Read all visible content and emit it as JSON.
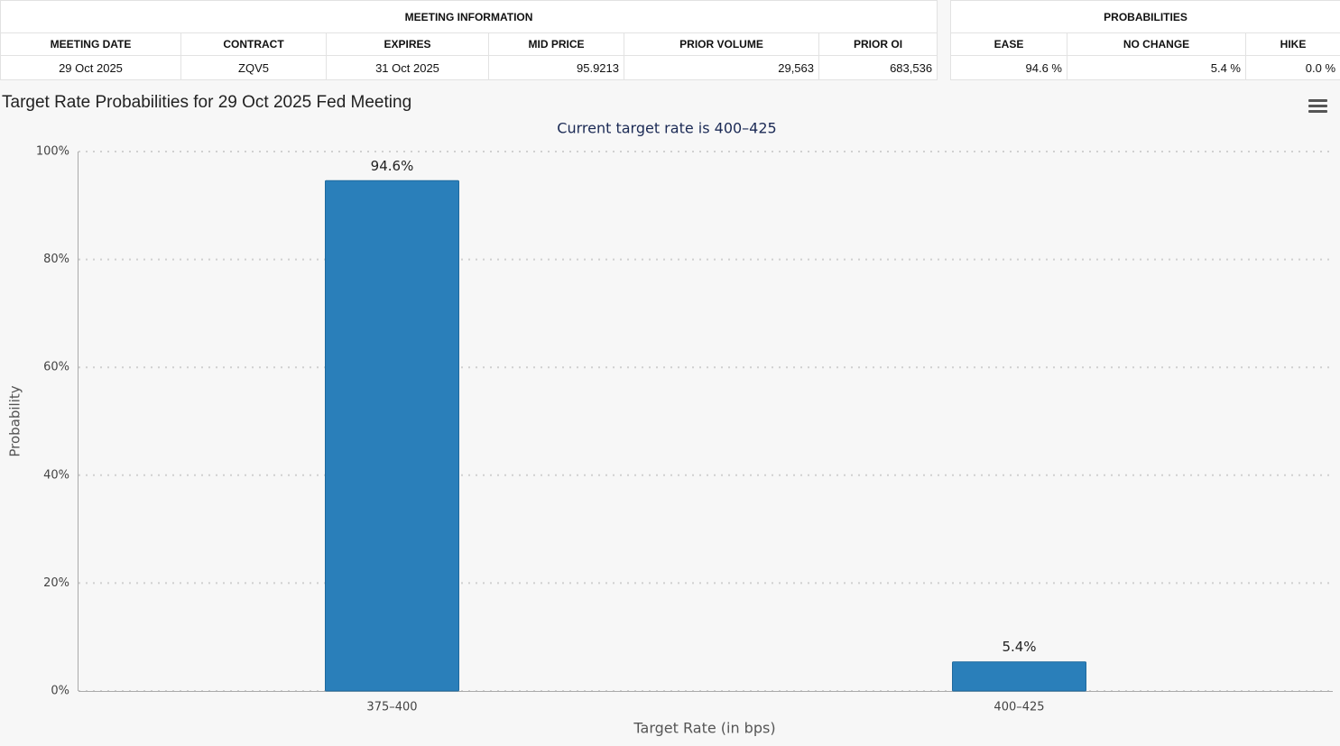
{
  "meeting_information": {
    "title": "MEETING INFORMATION",
    "columns": [
      "MEETING DATE",
      "CONTRACT",
      "EXPIRES",
      "MID PRICE",
      "PRIOR VOLUME",
      "PRIOR OI"
    ],
    "rows": [
      [
        "29 Oct 2025",
        "ZQV5",
        "31 Oct 2025",
        "95.9213",
        "29,563",
        "683,536"
      ]
    ]
  },
  "probabilities": {
    "title": "PROBABILITIES",
    "columns": [
      "EASE",
      "NO CHANGE",
      "HIKE"
    ],
    "rows": [
      [
        "94.6 %",
        "5.4 %",
        "0.0 %"
      ]
    ]
  },
  "chart_data": {
    "type": "bar",
    "title": "Target Rate Probabilities for 29 Oct 2025 Fed Meeting",
    "subtitle": "Current target rate is 400–425",
    "x_label": "Target Rate (in bps)",
    "y_label": "Probability",
    "categories": [
      "375–400",
      "400–425"
    ],
    "values": [
      94.6,
      5.4
    ],
    "value_labels": [
      "94.6%",
      "5.4%"
    ],
    "color": "#2a7fba",
    "ylim": [
      0,
      100
    ],
    "yticks": [
      {
        "value": 0,
        "label": "0%"
      },
      {
        "value": 20,
        "label": "20%"
      },
      {
        "value": 40,
        "label": "40%"
      },
      {
        "value": 60,
        "label": "60%"
      },
      {
        "value": 80,
        "label": "80%"
      },
      {
        "value": 100,
        "label": "100%"
      }
    ],
    "grid": true
  }
}
